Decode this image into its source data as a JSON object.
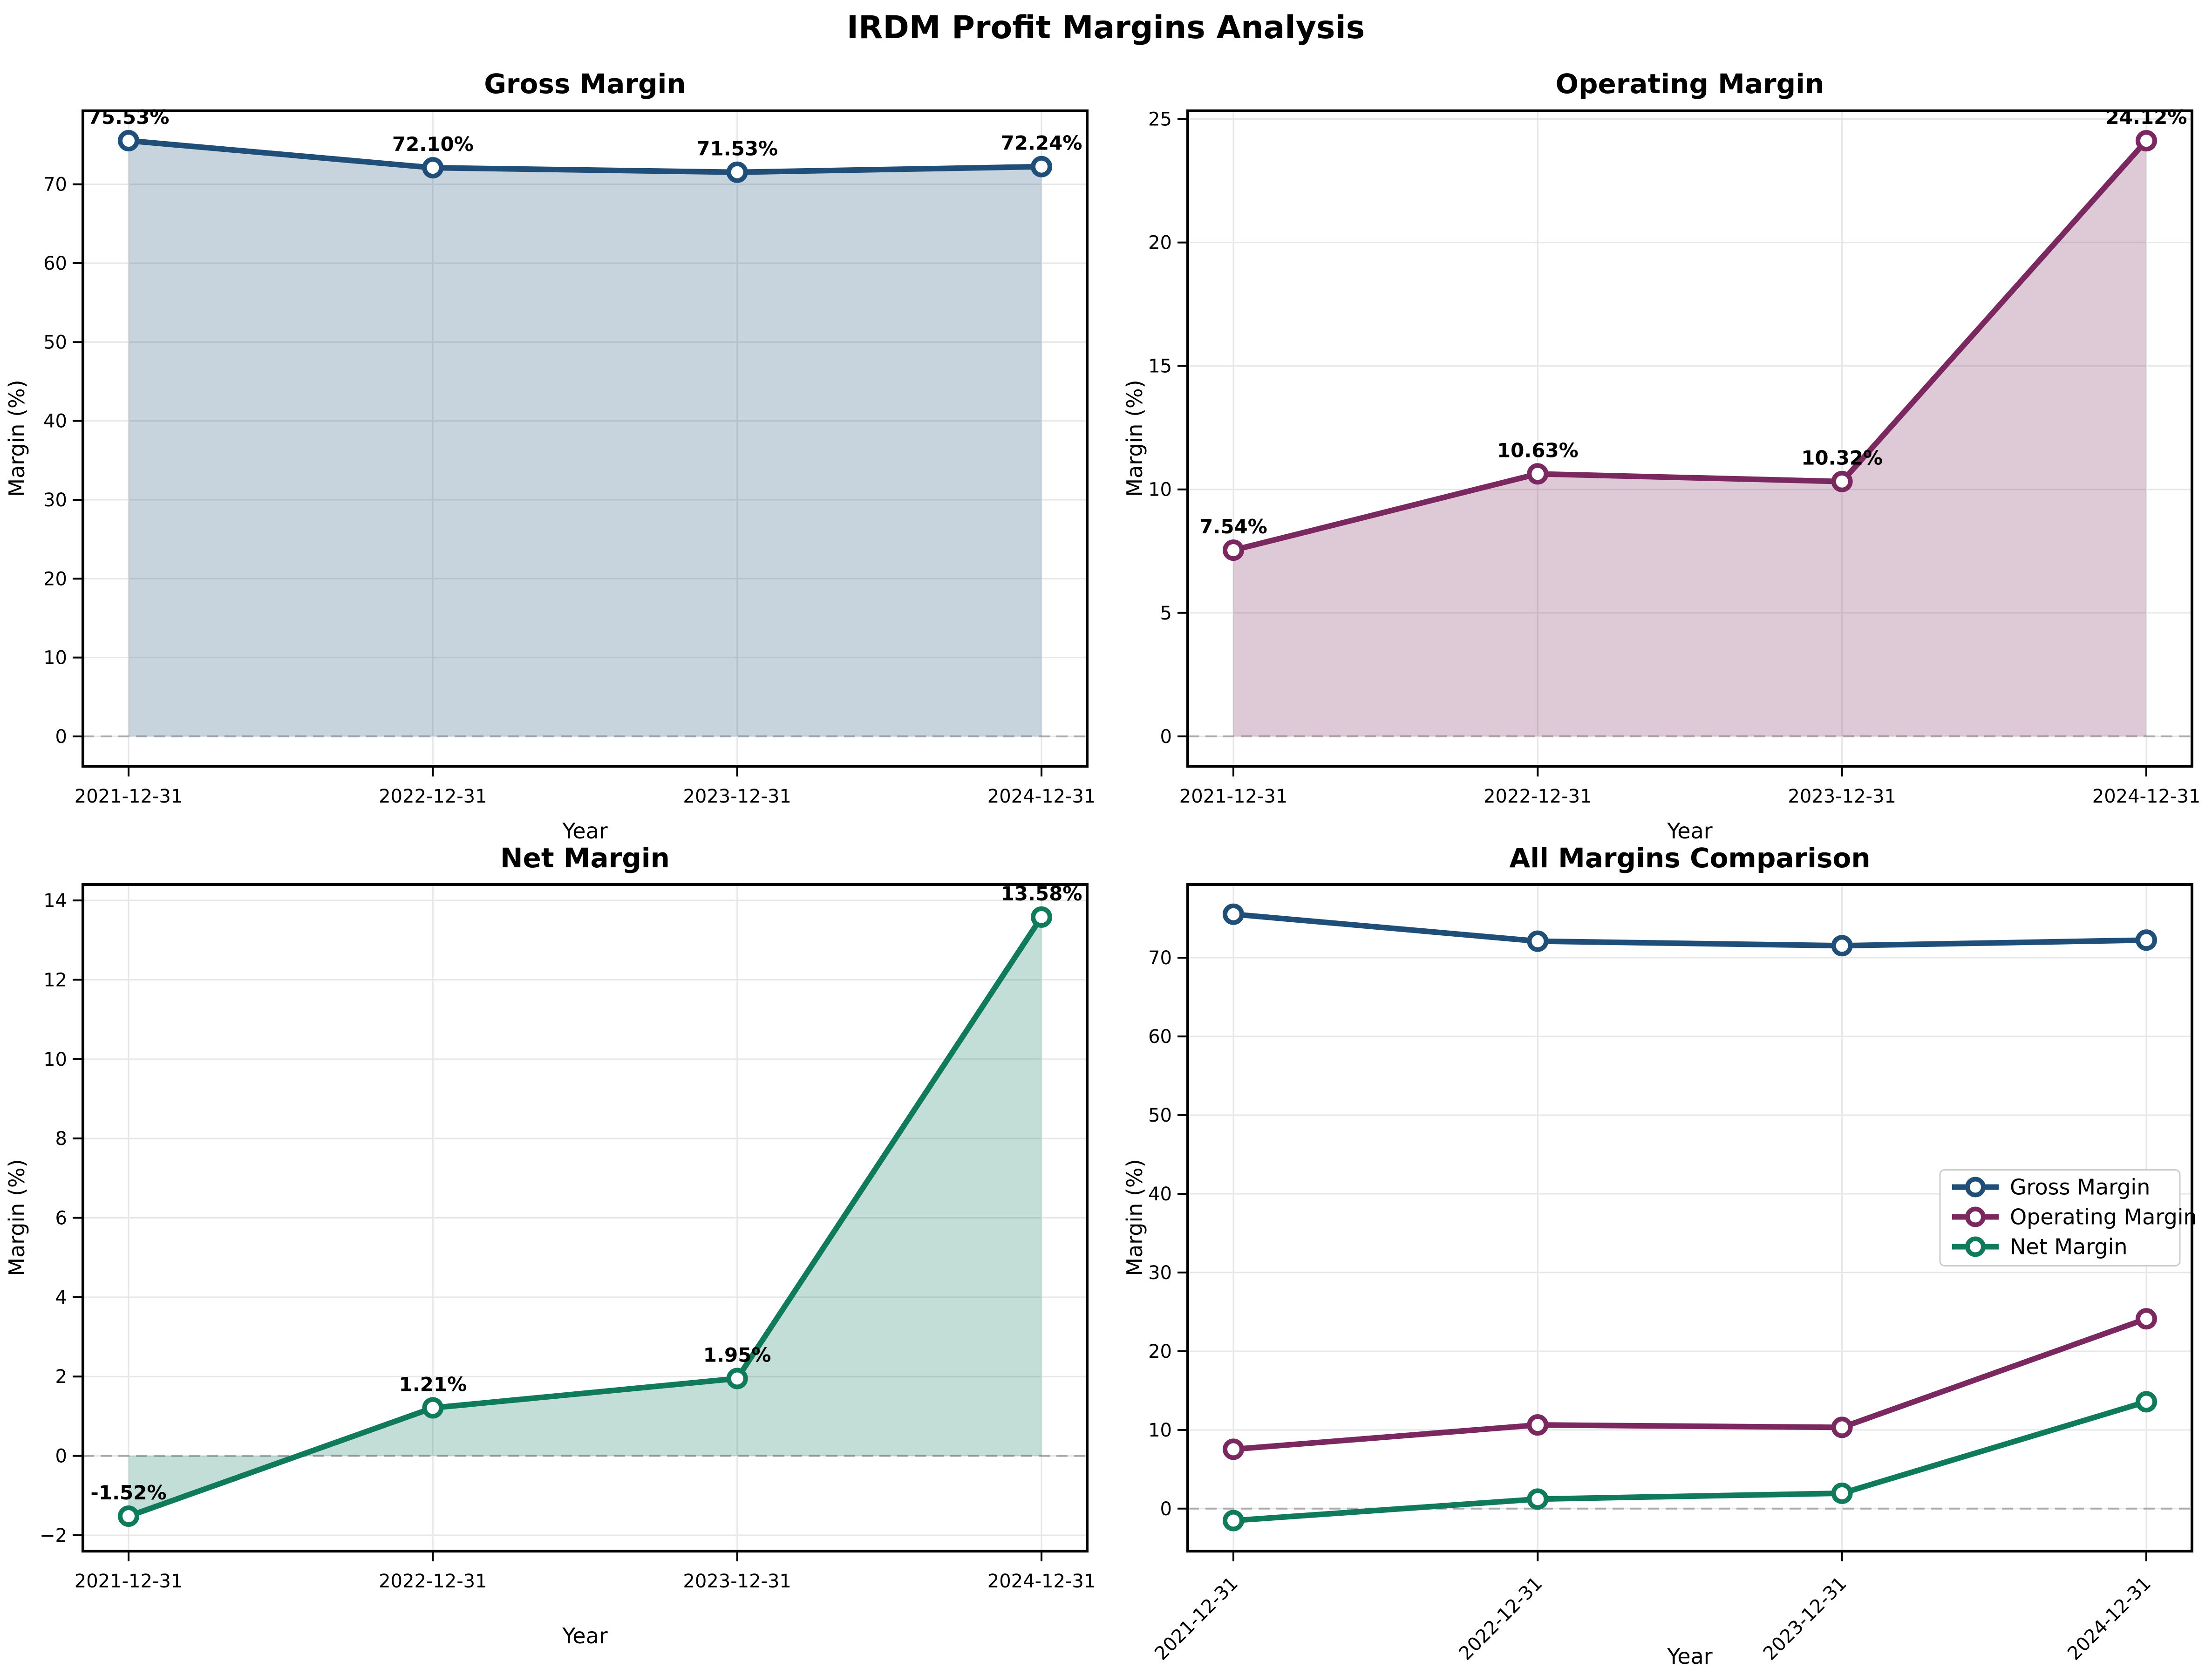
{
  "suptitle": "IRDM Profit Margins Analysis",
  "colors": {
    "gross": "#1F4E79",
    "operating": "#7B2760",
    "net": "#0F7B5B",
    "grid": "#E7E7E7",
    "zero_line": "#A9A9A9",
    "spine": "#000000",
    "legend_border": "#CCCCCC",
    "background": "#FFFFFF"
  },
  "chart_data": [
    {
      "id": "gross-margin",
      "type": "area",
      "title": "Gross Margin",
      "xlabel": "Year",
      "ylabel": "Margin (%)",
      "categories": [
        "2021-12-31",
        "2022-12-31",
        "2023-12-31",
        "2024-12-31"
      ],
      "values": [
        75.53,
        72.1,
        71.53,
        72.24
      ],
      "point_labels": [
        "75.53%",
        "72.10%",
        "71.53%",
        "72.24%"
      ],
      "color": "#1F4E79",
      "fill_opacity": 0.25,
      "ylim": [
        -3.78,
        79.31
      ],
      "yticks": [
        0,
        10,
        20,
        30,
        40,
        50,
        60,
        70
      ],
      "ytick_labels": [
        "0",
        "10",
        "20",
        "30",
        "40",
        "50",
        "60",
        "70"
      ],
      "zero_line": true,
      "grid": true,
      "x_tick_rotation": 0,
      "legend": false
    },
    {
      "id": "operating-margin",
      "type": "area",
      "title": "Operating Margin",
      "xlabel": "Year",
      "ylabel": "Margin (%)",
      "categories": [
        "2021-12-31",
        "2022-12-31",
        "2023-12-31",
        "2024-12-31"
      ],
      "values": [
        7.54,
        10.63,
        10.32,
        24.12
      ],
      "point_labels": [
        "7.54%",
        "10.63%",
        "10.32%",
        "24.12%"
      ],
      "color": "#7B2760",
      "fill_opacity": 0.25,
      "ylim": [
        -1.21,
        25.33
      ],
      "yticks": [
        0,
        5,
        10,
        15,
        20,
        25
      ],
      "ytick_labels": [
        "0",
        "5",
        "10",
        "15",
        "20",
        "25"
      ],
      "zero_line": true,
      "grid": true,
      "x_tick_rotation": 0,
      "legend": false
    },
    {
      "id": "net-margin",
      "type": "area",
      "title": "Net Margin",
      "xlabel": "Year",
      "ylabel": "Margin (%)",
      "categories": [
        "2021-12-31",
        "2022-12-31",
        "2023-12-31",
        "2024-12-31"
      ],
      "values": [
        -1.52,
        1.21,
        1.95,
        13.58
      ],
      "point_labels": [
        "-1.52%",
        "1.21%",
        "1.95%",
        "13.58%"
      ],
      "color": "#0F7B5B",
      "fill_opacity": 0.25,
      "ylim": [
        -2.4,
        14.4
      ],
      "yticks": [
        -2,
        0,
        2,
        4,
        6,
        8,
        10,
        12,
        14
      ],
      "ytick_labels": [
        "−2",
        "0",
        "2",
        "4",
        "6",
        "8",
        "10",
        "12",
        "14"
      ],
      "zero_line": true,
      "grid": true,
      "x_tick_rotation": 0,
      "legend": false
    },
    {
      "id": "all-margins-comparison",
      "type": "line",
      "title": "All Margins Comparison",
      "xlabel": "Year",
      "ylabel": "Margin (%)",
      "categories": [
        "2021-12-31",
        "2022-12-31",
        "2023-12-31",
        "2024-12-31"
      ],
      "series": [
        {
          "name": "Gross Margin",
          "color": "#1F4E79",
          "values": [
            75.53,
            72.1,
            71.53,
            72.24
          ]
        },
        {
          "name": "Operating Margin",
          "color": "#7B2760",
          "values": [
            7.54,
            10.63,
            10.32,
            24.12
          ]
        },
        {
          "name": "Net Margin",
          "color": "#0F7B5B",
          "values": [
            -1.52,
            1.21,
            1.95,
            13.58
          ]
        }
      ],
      "ylim": [
        -5.4,
        79.3
      ],
      "yticks": [
        0,
        10,
        20,
        30,
        40,
        50,
        60,
        70
      ],
      "ytick_labels": [
        "0",
        "10",
        "20",
        "30",
        "40",
        "50",
        "60",
        "70"
      ],
      "zero_line": true,
      "grid": true,
      "x_tick_rotation": 45,
      "legend": true,
      "legend_position": "center right"
    }
  ]
}
